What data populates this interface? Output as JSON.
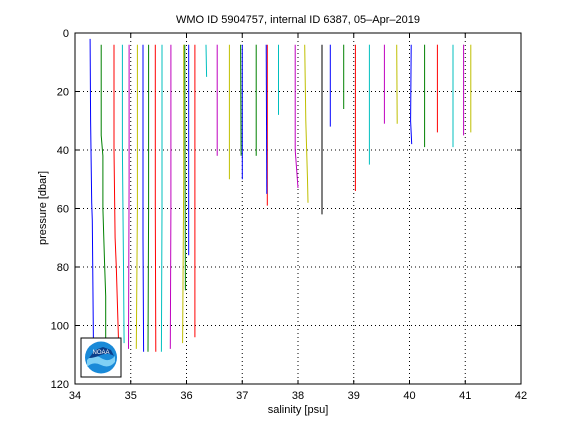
{
  "chart_data": {
    "type": "line",
    "title": "WMO ID 5904757, internal ID 6387, 05–Apr–2019",
    "xlabel": "salinity [psu]",
    "ylabel": "pressure [dbar]",
    "xlim": [
      34,
      42
    ],
    "ylim": [
      0,
      120
    ],
    "y_reversed": true,
    "grid": true,
    "xticks": [
      "34",
      "35",
      "36",
      "37",
      "38",
      "39",
      "40",
      "41",
      "42"
    ],
    "yticks": [
      "0",
      "20",
      "40",
      "60",
      "80",
      "100",
      "120"
    ],
    "logo": "NOAA",
    "series": [
      {
        "color": "#0000ff",
        "x": [
          34.27,
          34.28,
          34.3,
          34.31,
          34.33
        ],
        "y": [
          2,
          30,
          58,
          64,
          105
        ]
      },
      {
        "color": "#008000",
        "x": [
          34.47,
          34.47,
          34.5,
          34.5,
          34.53,
          34.55,
          34.55
        ],
        "y": [
          4,
          35,
          42,
          60,
          78,
          90,
          105
        ]
      },
      {
        "color": "#ff0000",
        "x": [
          34.7,
          34.7,
          34.72,
          34.74,
          34.78
        ],
        "y": [
          4,
          40,
          70,
          80,
          105
        ]
      },
      {
        "color": "#00bfbf",
        "x": [
          34.85,
          34.85,
          34.87,
          34.88
        ],
        "y": [
          4,
          40,
          80,
          106
        ]
      },
      {
        "color": "#bf00bf",
        "x": [
          34.97,
          34.97,
          34.96
        ],
        "y": [
          4,
          50,
          108
        ]
      },
      {
        "color": "#bfbf00",
        "x": [
          35.12,
          35.12,
          35.1
        ],
        "y": [
          4,
          60,
          108
        ]
      },
      {
        "color": "#0000ff",
        "x": [
          35.22,
          35.22,
          35.23
        ],
        "y": [
          4,
          70,
          109
        ]
      },
      {
        "color": "#008000",
        "x": [
          35.32,
          35.32,
          35.31
        ],
        "y": [
          4,
          60,
          109
        ]
      },
      {
        "color": "#ff0000",
        "x": [
          35.44,
          35.44,
          35.45
        ],
        "y": [
          4,
          60,
          109
        ]
      },
      {
        "color": "#00bfbf",
        "x": [
          35.56,
          35.56,
          35.55
        ],
        "y": [
          4,
          60,
          109
        ]
      },
      {
        "color": "#bf00bf",
        "x": [
          35.72,
          35.72,
          35.71
        ],
        "y": [
          4,
          60,
          108
        ]
      },
      {
        "color": "#bfbf00",
        "x": [
          35.95,
          35.95,
          35.93
        ],
        "y": [
          4,
          50,
          106
        ]
      },
      {
        "color": "#0000ff",
        "x": [
          36.04,
          36.04
        ],
        "y": [
          4,
          76
        ]
      },
      {
        "color": "#008000",
        "x": [
          35.97,
          35.98
        ],
        "y": [
          4,
          88
        ]
      },
      {
        "color": "#ff0000",
        "x": [
          36.15,
          36.15
        ],
        "y": [
          4,
          104
        ]
      },
      {
        "color": "#00bfbf",
        "x": [
          36.35,
          36.36
        ],
        "y": [
          4,
          15
        ]
      },
      {
        "color": "#bf00bf",
        "x": [
          36.55,
          36.55
        ],
        "y": [
          4,
          42
        ]
      },
      {
        "color": "#bfbf00",
        "x": [
          36.77,
          36.77
        ],
        "y": [
          4,
          50
        ]
      },
      {
        "color": "#0000ff",
        "x": [
          37.0,
          37.0
        ],
        "y": [
          4,
          50
        ]
      },
      {
        "color": "#008000",
        "x": [
          37.25,
          37.25
        ],
        "y": [
          4,
          42
        ]
      },
      {
        "color": "#ff0000",
        "x": [
          37.45,
          37.45
        ],
        "y": [
          4,
          59
        ]
      },
      {
        "color": "#00bfbf",
        "x": [
          37.65,
          37.65
        ],
        "y": [
          4,
          28
        ]
      },
      {
        "color": "#bf00bf",
        "x": [
          37.95,
          37.95,
          38.0
        ],
        "y": [
          4,
          40,
          53
        ]
      },
      {
        "color": "#bfbf00",
        "x": [
          38.12,
          38.14,
          38.17,
          38.18
        ],
        "y": [
          4,
          30,
          50,
          58
        ]
      },
      {
        "color": "#0000ff",
        "x": [
          37.43,
          37.44
        ],
        "y": [
          4,
          55
        ]
      },
      {
        "color": "#008000",
        "x": [
          36.97,
          36.98
        ],
        "y": [
          4,
          42
        ]
      },
      {
        "color": "#0000ff",
        "x": [
          38.58,
          38.58
        ],
        "y": [
          4,
          32
        ]
      },
      {
        "color": "#008000",
        "x": [
          38.82,
          38.82
        ],
        "y": [
          4,
          26
        ]
      },
      {
        "color": "#ff0000",
        "x": [
          39.03,
          39.03
        ],
        "y": [
          4,
          54
        ]
      },
      {
        "color": "#00bfbf",
        "x": [
          39.28,
          39.28
        ],
        "y": [
          4,
          45
        ]
      },
      {
        "color": "#bf00bf",
        "x": [
          39.55,
          39.55
        ],
        "y": [
          4,
          31
        ]
      },
      {
        "color": "#bfbf00",
        "x": [
          39.77,
          39.78
        ],
        "y": [
          4,
          31
        ]
      },
      {
        "color": "#0000ff",
        "x": [
          40.03,
          40.02,
          40.04
        ],
        "y": [
          4,
          30,
          38
        ]
      },
      {
        "color": "#008000",
        "x": [
          40.27,
          40.27
        ],
        "y": [
          4,
          39
        ]
      },
      {
        "color": "#ff0000",
        "x": [
          40.5,
          40.5
        ],
        "y": [
          4,
          34
        ]
      },
      {
        "color": "#00bfbf",
        "x": [
          40.78,
          40.78
        ],
        "y": [
          4,
          39
        ]
      },
      {
        "color": "#bf00bf",
        "x": [
          40.97,
          40.97
        ],
        "y": [
          4,
          35
        ]
      },
      {
        "color": "#bfbf00",
        "x": [
          41.1,
          41.1
        ],
        "y": [
          4,
          34
        ]
      },
      {
        "color": "#000000",
        "x": [
          38.43,
          38.43
        ],
        "y": [
          4,
          62
        ]
      }
    ]
  }
}
